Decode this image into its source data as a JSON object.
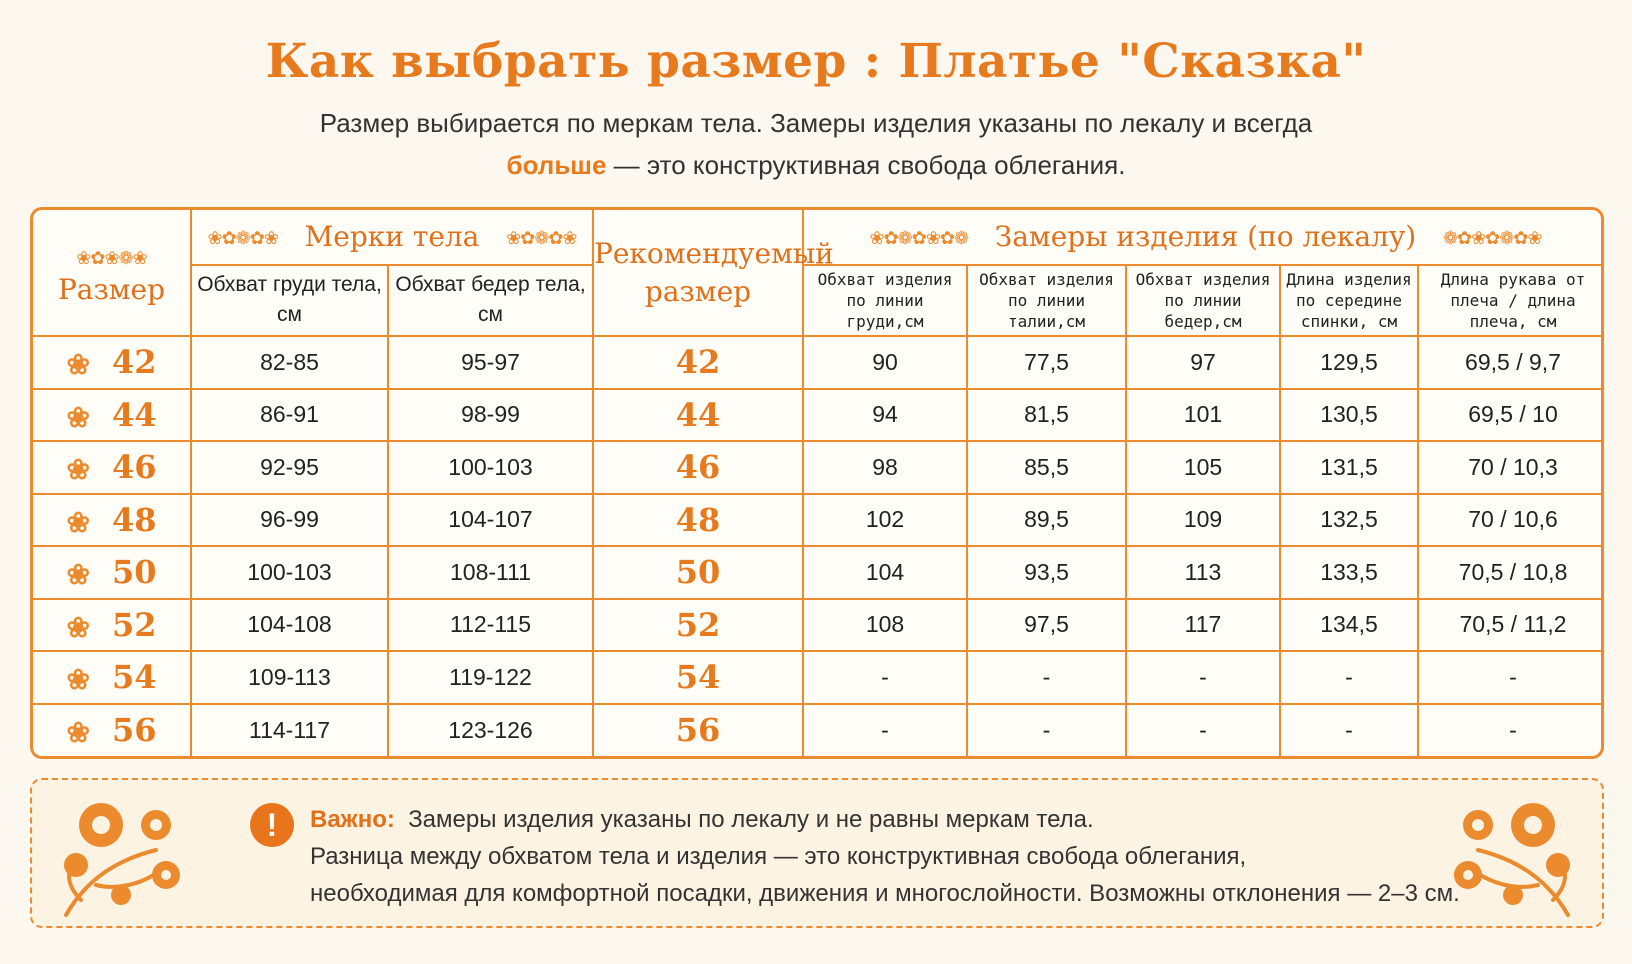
{
  "title": "Как выбрать размер :  Платье \"Сказка\"",
  "subtitle_line1": "Размер выбирается по меркам тела. Замеры изделия указаны по лекалу и всегда",
  "subtitle_bold": "больше",
  "subtitle_line2_rest": " — это конструктивная свобода облегания.",
  "table": {
    "size_header": "Размер",
    "body_header": "Мерки тела",
    "recommended_header": "Рекомендуемый размер",
    "garment_header": "Замеры изделия (по лекалу)",
    "body_cols": [
      "Обхват груди тела, см",
      "Обхват бедер тела, см"
    ],
    "garment_cols": [
      "Обхват изделия по линии груди,см",
      "Обхват изделия по линии талии,см",
      "Обхват изделия по линии бедер,см",
      "Длина изделия по середине спинки, см",
      "Длина рукава от плеча / длина плеча, см"
    ],
    "rows": [
      {
        "size": "42",
        "chest": "82-85",
        "hips": "95-97",
        "rec": "42",
        "g": [
          "90",
          "77,5",
          "97",
          "129,5",
          "69,5 / 9,7"
        ]
      },
      {
        "size": "44",
        "chest": "86-91",
        "hips": "98-99",
        "rec": "44",
        "g": [
          "94",
          "81,5",
          "101",
          "130,5",
          "69,5 / 10"
        ]
      },
      {
        "size": "46",
        "chest": "92-95",
        "hips": "100-103",
        "rec": "46",
        "g": [
          "98",
          "85,5",
          "105",
          "131,5",
          "70 / 10,3"
        ]
      },
      {
        "size": "48",
        "chest": "96-99",
        "hips": "104-107",
        "rec": "48",
        "g": [
          "102",
          "89,5",
          "109",
          "132,5",
          "70 / 10,6"
        ]
      },
      {
        "size": "50",
        "chest": "100-103",
        "hips": "108-111",
        "rec": "50",
        "g": [
          "104",
          "93,5",
          "113",
          "133,5",
          "70,5 / 10,8"
        ]
      },
      {
        "size": "52",
        "chest": "104-108",
        "hips": "112-115",
        "rec": "52",
        "g": [
          "108",
          "97,5",
          "117",
          "134,5",
          "70,5 / 11,2"
        ]
      },
      {
        "size": "54",
        "chest": "109-113",
        "hips": "119-122",
        "rec": "54",
        "g": [
          "-",
          "-",
          "-",
          "-",
          "-"
        ]
      },
      {
        "size": "56",
        "chest": "114-117",
        "hips": "123-126",
        "rec": "56",
        "g": [
          "-",
          "-",
          "-",
          "-",
          "-"
        ]
      }
    ]
  },
  "notice": {
    "label": "Важно:",
    "line1": "Замеры изделия указаны по лекалу и не равны меркам тела.",
    "line2": "Разница между обхватом тела и изделия — это конструктивная свобода облегания,",
    "line3": "необходимая для комфортной посадки, движения и многослойности. Возможны отклонения — 2–3 см."
  },
  "colors": {
    "accent": "#e87a1e",
    "border": "#ec8a2e",
    "background": "#fdf8ef"
  },
  "icons": {
    "row_marker": "flower-icon",
    "notice": "exclamation-icon",
    "decor": "floral-ornament-icon"
  }
}
